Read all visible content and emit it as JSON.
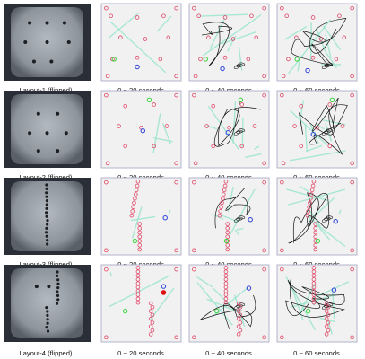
{
  "figure": {
    "colors": {
      "circle": "#e04b6a",
      "trail": "#8fe3c8",
      "path": "#151515",
      "green_marker": "#39d33f",
      "blue_marker": "#2b3fd8",
      "red_marker": "#e01010",
      "panel_bg": "#f1f1f1",
      "panel_border": "#b4b4cc",
      "photo_dark": "#2a2e36",
      "photo_arena": "#9ca3ab"
    },
    "time_captions": [
      "0 ~ 20 seconds",
      "0 ~ 40 seconds",
      "0 ~ 60 seconds"
    ],
    "rows": [
      {
        "layout_label": "Layout-1 (flipped)"
      },
      {
        "layout_label": "Layout-2 (flipped)"
      },
      {
        "layout_label": "Layout-3 (flipped)"
      },
      {
        "layout_label": "Layout-4 (flipped)"
      }
    ]
  }
}
